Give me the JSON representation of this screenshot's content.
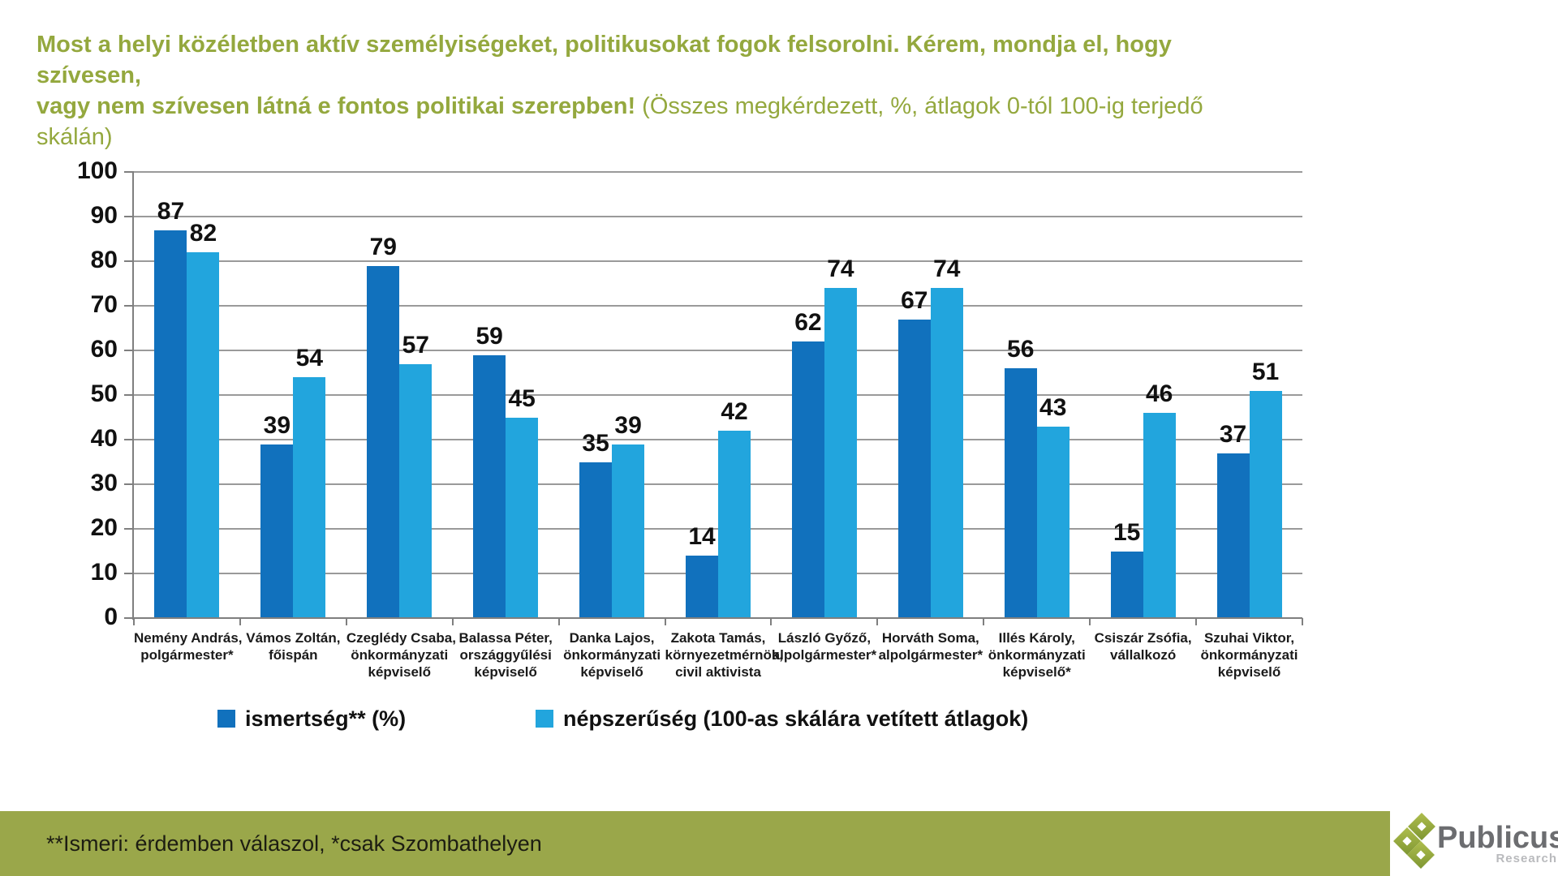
{
  "title": {
    "line1_bold": "Most a helyi közéletben aktív személyiségeket, politikusokat fogok felsorolni. Kérem, mondja el, hogy szívesen,",
    "line2_bold": "vagy nem szívesen látná e fontos politikai szerepben!",
    "line2_normal": " (Összes megkérdezett, %, átlagok 0-tól 100-ig terjedő skálán)"
  },
  "chart_data": {
    "type": "bar",
    "title": "",
    "xlabel": "",
    "ylabel": "",
    "ylim": [
      0,
      100
    ],
    "yticks": [
      0,
      10,
      20,
      30,
      40,
      50,
      60,
      70,
      80,
      90,
      100
    ],
    "grid": true,
    "legend_position": "bottom",
    "categories": [
      "Nemény András, polgármester*",
      "Vámos Zoltán, főispán",
      "Czeglédy Csaba, önkormányzati képviselő",
      "Balassa Péter, országgyűlési képviselő",
      "Danka Lajos, önkormányzati képviselő",
      "Zakota Tamás, környezetmérnök, civil aktivista",
      "László Győző, alpolgármester*",
      "Horváth Soma, alpolgármester*",
      "Illés Károly, önkormányzati képviselő*",
      "Csiszár Zsófia, vállalkozó",
      "Szuhai Viktor, önkormányzati képviselő"
    ],
    "category_lines": [
      [
        "Nemény András,",
        "polgármester*"
      ],
      [
        "Vámos Zoltán,",
        "főispán"
      ],
      [
        "Czeglédy Csaba,",
        "önkormányzati",
        "képviselő"
      ],
      [
        "Balassa Péter,",
        "országgyűlési",
        "képviselő"
      ],
      [
        "Danka Lajos,",
        "önkormányzati",
        "képviselő"
      ],
      [
        "Zakota Tamás,",
        "környezetmérnök,",
        "civil aktivista"
      ],
      [
        "László Győző,",
        "alpolgármester*"
      ],
      [
        "Horváth Soma,",
        "alpolgármester*"
      ],
      [
        "Illés Károly,",
        "önkormányzati",
        "képviselő*"
      ],
      [
        "Csiszár Zsófia,",
        "vállalkozó"
      ],
      [
        "Szuhai Viktor,",
        "önkormányzati",
        "képviselő"
      ]
    ],
    "series": [
      {
        "name": "ismertség** (%)",
        "color": "#1171bd",
        "values": [
          87,
          39,
          79,
          59,
          35,
          14,
          62,
          67,
          56,
          15,
          37
        ]
      },
      {
        "name": "népszerűség (100-as skálára vetített átlagok)",
        "color": "#22a5dd",
        "values": [
          82,
          54,
          57,
          45,
          39,
          42,
          74,
          74,
          43,
          46,
          51
        ]
      }
    ]
  },
  "footer": {
    "note": "**Ismeri: érdemben válaszol, *csak Szombathelyen"
  },
  "logo": {
    "word": "Publicus",
    "sub": "Research"
  },
  "colors": {
    "title_green": "#94a83e",
    "band_green": "#9aa74a",
    "series1_blue": "#1171bd",
    "series2_blue": "#22a5dd",
    "grid_gray": "#9a9a9a",
    "axis_gray": "#7f7f7f"
  }
}
